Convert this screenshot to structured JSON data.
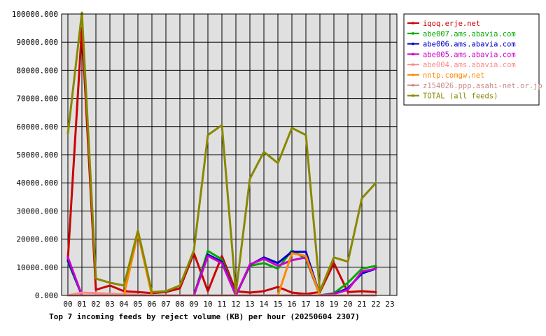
{
  "chart_data": {
    "type": "line",
    "title": "Top 7 incoming feeds by reject volume (KB) per hour (20250604 2307)",
    "x": [
      "00",
      "01",
      "02",
      "03",
      "04",
      "05",
      "06",
      "07",
      "08",
      "09",
      "10",
      "11",
      "12",
      "13",
      "14",
      "15",
      "16",
      "17",
      "18",
      "19",
      "20",
      "21",
      "22",
      "23"
    ],
    "y_ticks": [
      "0.000",
      "10000.000",
      "20000.000",
      "30000.000",
      "40000.000",
      "50000.000",
      "60000.000",
      "70000.000",
      "80000.000",
      "90000.000",
      "100000.000"
    ],
    "ylim": [
      0,
      100000
    ],
    "grid": true,
    "legend_position": "right",
    "series": [
      {
        "name": "iqoq.erje.net",
        "color": "#cc0000",
        "values": [
          13000,
          95000,
          2000,
          3500,
          1500,
          1200,
          800,
          1200,
          2500,
          15000,
          1500,
          14000,
          1500,
          1000,
          1500,
          3000,
          1000,
          500,
          1200,
          11500,
          1200,
          1500,
          1200,
          null
        ]
      },
      {
        "name": "abe007.ams.abavia.com",
        "color": "#00aa00",
        "values": [
          12000,
          0,
          0,
          0,
          0,
          0,
          0,
          0,
          0,
          0,
          15800,
          12800,
          0,
          10500,
          11500,
          9500,
          16000,
          13000,
          0,
          800,
          4500,
          9500,
          10500,
          null
        ]
      },
      {
        "name": "abe006.ams.abavia.com",
        "color": "#0000cc",
        "values": [
          12500,
          0,
          0,
          0,
          0,
          0,
          0,
          0,
          0,
          0,
          14500,
          12000,
          0,
          10800,
          13500,
          11500,
          15500,
          15500,
          0,
          500,
          2500,
          7800,
          9500,
          null
        ]
      },
      {
        "name": "abe005.ams.abavia.com",
        "color": "#cc00cc",
        "values": [
          13500,
          0,
          0,
          0,
          0,
          0,
          0,
          0,
          0,
          0,
          14000,
          11500,
          0,
          11000,
          13000,
          10500,
          12500,
          13500,
          0,
          500,
          2000,
          8500,
          9500,
          null
        ]
      },
      {
        "name": "abe004.ams.abavia.com",
        "color": "#ff8888",
        "values": [
          0,
          1000,
          800,
          600,
          400,
          200,
          0,
          0,
          0,
          0,
          0,
          0,
          0,
          0,
          0,
          0,
          0,
          0,
          0,
          0,
          0,
          0,
          0,
          null
        ]
      },
      {
        "name": "nntp.comgw.net",
        "color": "#ff8800",
        "values": [
          0,
          0,
          0,
          0,
          0,
          22000,
          0,
          0,
          0,
          0,
          0,
          0,
          0,
          0,
          0,
          0,
          15000,
          14000,
          0,
          0,
          0,
          0,
          0,
          null
        ]
      },
      {
        "name": "z154026.ppp.asahi-net.or.jp",
        "color": "#cc8888",
        "values": [
          0,
          0,
          0,
          0,
          0,
          0,
          0,
          0,
          0,
          0,
          0,
          0,
          0,
          0,
          0,
          0,
          0,
          0,
          0,
          0,
          0,
          0,
          0,
          null
        ]
      },
      {
        "name": "TOTAL (all feeds)",
        "color": "#888800",
        "values": [
          57500,
          100500,
          6000,
          4500,
          3500,
          23000,
          1200,
          1500,
          3500,
          16000,
          57000,
          60500,
          1000,
          41500,
          51000,
          47000,
          59500,
          57000,
          1500,
          13500,
          12000,
          34500,
          40000,
          null
        ]
      }
    ]
  }
}
